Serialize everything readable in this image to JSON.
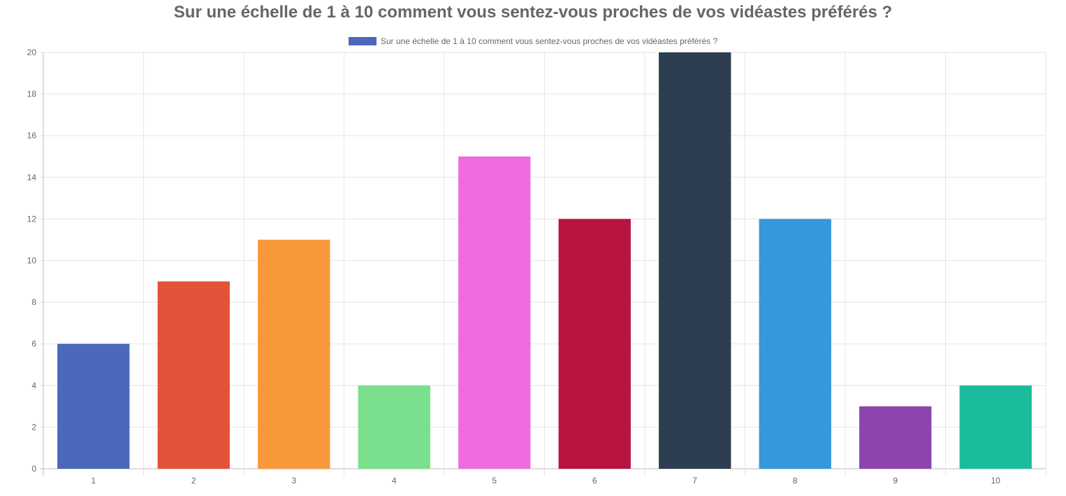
{
  "chart_data": {
    "type": "bar",
    "title": "Sur une échelle de 1 à 10 comment vous sentez-vous proches de vos vidéastes préférés ?",
    "xlabel": "",
    "ylabel": "",
    "categories": [
      "1",
      "2",
      "3",
      "4",
      "5",
      "6",
      "7",
      "8",
      "9",
      "10"
    ],
    "series": [
      {
        "name": "Sur une échelle de 1 à 10 comment vous sentez-vous proches de vos vidéastes préférés ?",
        "values": [
          6,
          9,
          11,
          4,
          15,
          12,
          20,
          12,
          3,
          4
        ]
      }
    ],
    "colors": [
      "#4b69bb",
      "#e5523a",
      "#f9983a",
      "#7be08e",
      "#f26ae0",
      "#b71540",
      "#2c3e50",
      "#3498db",
      "#8e44ad",
      "#1abc9c"
    ],
    "ylim": [
      0,
      20
    ],
    "yticks": [
      0,
      2,
      4,
      6,
      8,
      10,
      12,
      14,
      16,
      18,
      20
    ],
    "grid": true,
    "legend_position": "top"
  }
}
